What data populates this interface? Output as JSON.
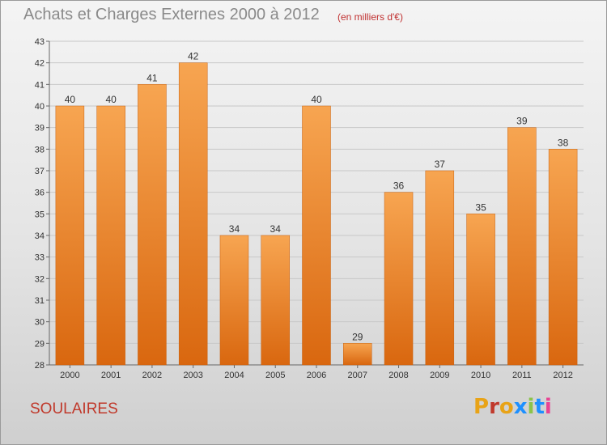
{
  "header": {
    "title": "Achats et Charges Externes 2000 à 2012",
    "unit": "(en milliers d'€)"
  },
  "footer": {
    "commune": "SOULAIRES",
    "logo_text": "Proxiti"
  },
  "colors": {
    "bar_light": "#f7a551",
    "bar_dark": "#d9670f",
    "title": "#8a8a8a",
    "unit": "#c03030",
    "commune": "#c0392b",
    "grid": "#c8c8c8",
    "logo_letters": [
      "#e8a317",
      "#c0392b",
      "#e8a317",
      "#1e90ff",
      "#8bc34a",
      "#1e90ff",
      "#e84393"
    ]
  },
  "chart_data": {
    "type": "bar",
    "categories": [
      "2000",
      "2001",
      "2002",
      "2003",
      "2004",
      "2005",
      "2006",
      "2007",
      "2008",
      "2009",
      "2010",
      "2011",
      "2012"
    ],
    "values": [
      40,
      40,
      41,
      42,
      34,
      34,
      40,
      29,
      36,
      37,
      35,
      39,
      38
    ],
    "ylim": [
      28,
      43
    ],
    "yticks": [
      28,
      29,
      30,
      31,
      32,
      33,
      34,
      35,
      36,
      37,
      38,
      39,
      40,
      41,
      42,
      43
    ],
    "grid": true,
    "data_labels": true
  }
}
